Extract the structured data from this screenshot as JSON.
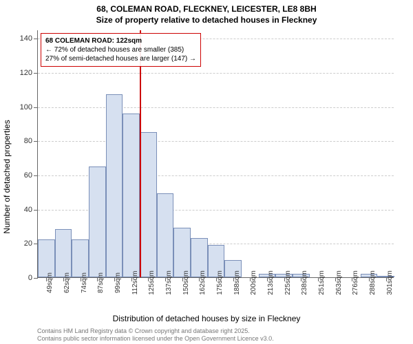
{
  "title": {
    "line1": "68, COLEMAN ROAD, FLECKNEY, LEICESTER, LE8 8BH",
    "line2": "Size of property relative to detached houses in Fleckney"
  },
  "chart": {
    "type": "histogram",
    "y_axis": {
      "label": "Number of detached properties",
      "min": 0,
      "max": 145,
      "ticks": [
        0,
        20,
        40,
        60,
        80,
        100,
        120,
        140
      ],
      "grid_color": "#cccccc",
      "axis_color": "#666666",
      "label_fontsize": 12,
      "tick_fontsize": 11
    },
    "x_axis": {
      "label": "Distribution of detached houses by size in Fleckney",
      "ticks": [
        "49sqm",
        "62sqm",
        "74sqm",
        "87sqm",
        "99sqm",
        "112sqm",
        "125sqm",
        "137sqm",
        "150sqm",
        "162sqm",
        "175sqm",
        "188sqm",
        "200sqm",
        "213sqm",
        "225sqm",
        "238sqm",
        "251sqm",
        "263sqm",
        "276sqm",
        "288sqm",
        "301sqm"
      ],
      "label_fontsize": 12,
      "tick_fontsize": 10
    },
    "bars": {
      "values": [
        22,
        28,
        22,
        65,
        107,
        96,
        85,
        49,
        29,
        23,
        19,
        10,
        0,
        2,
        2,
        2,
        0,
        0,
        0,
        2,
        1
      ],
      "fill_color": "#d6e0f0",
      "border_color": "#7a8fb8",
      "bar_width_ratio": 1.0
    },
    "marker": {
      "x_index_after": 6,
      "color": "#cc0000",
      "line_width": 2
    },
    "annotation": {
      "title": "68 COLEMAN ROAD: 122sqm",
      "line2": "← 72% of detached houses are smaller (385)",
      "line3": "27% of semi-detached houses are larger (147) →",
      "border_color": "#cc0000",
      "fontsize": 10
    },
    "background_color": "#ffffff"
  },
  "footer": {
    "line1": "Contains HM Land Registry data © Crown copyright and database right 2025.",
    "line2": "Contains public sector information licensed under the Open Government Licence v3.0."
  }
}
